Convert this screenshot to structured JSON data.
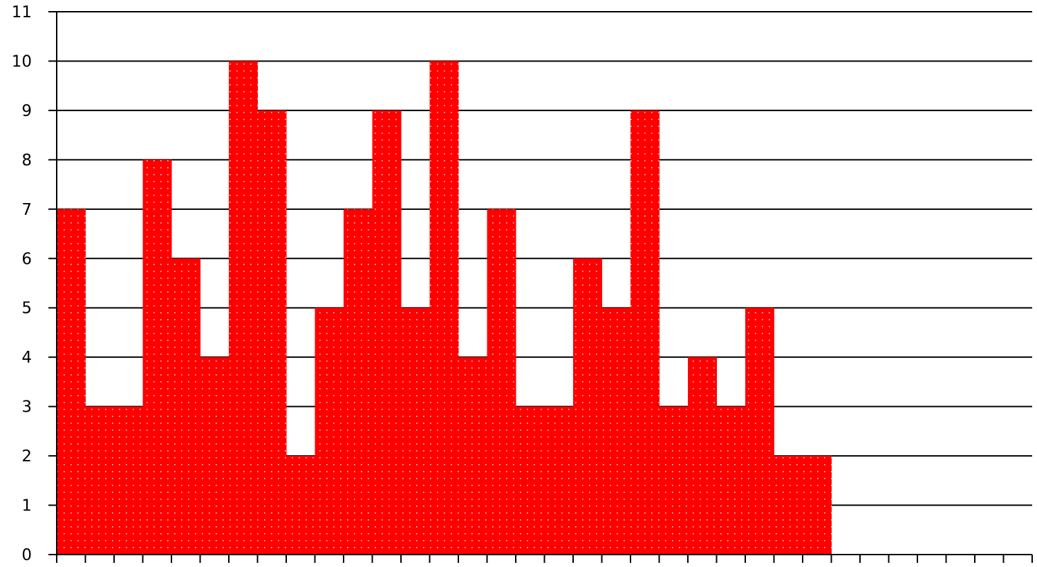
{
  "chart_data": {
    "type": "bar",
    "subtype": "histogram-step",
    "title": "",
    "xlabel": "",
    "ylabel": "",
    "ylim": [
      0,
      11
    ],
    "yticks": [
      "0",
      "1",
      "2",
      "3",
      "4",
      "5",
      "6",
      "7",
      "8",
      "9",
      "10",
      "11"
    ],
    "grid": "horizontal",
    "bin_slots": 34,
    "values": [
      7,
      3,
      3,
      8,
      6,
      4,
      10,
      9,
      2,
      5,
      7,
      9,
      5,
      10,
      4,
      7,
      3,
      3,
      6,
      5,
      9,
      3,
      4,
      3,
      5,
      2,
      2
    ],
    "bar_color": "#ff0000",
    "pattern_dot_color": "#ffd0d0",
    "axis_color": "#000000"
  }
}
